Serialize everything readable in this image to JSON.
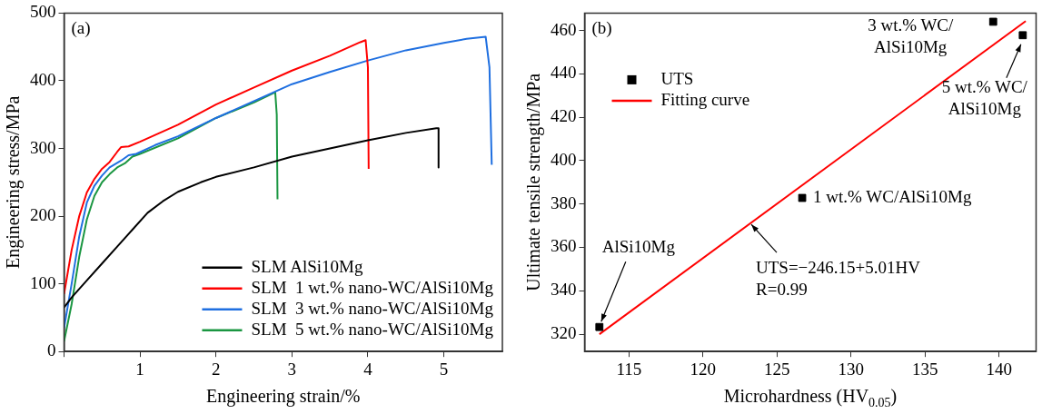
{
  "chart_data": [
    {
      "type": "line",
      "xlabel": "Engineering strain/%",
      "ylabel": "Engineering stress/MPa",
      "xlim": [
        0,
        5.77
      ],
      "ylim": [
        0,
        500
      ],
      "xticks": [
        {
          "value": 0,
          "label": null
        },
        1,
        2,
        3,
        4,
        5
      ],
      "yticks": [
        0,
        100,
        200,
        300,
        400,
        500
      ],
      "grid": false,
      "legend": "bottom right",
      "annotations": [
        "(a)"
      ],
      "series": [
        {
          "name": "SLM AlSi10Mg",
          "color": "#000000",
          "x": [
            0,
            0.1,
            0.3,
            0.5,
            0.7,
            0.9,
            1.1,
            1.3,
            1.5,
            1.8,
            2,
            2.5,
            3,
            3.5,
            4,
            4.5,
            4.9,
            4.93,
            4.93
          ],
          "values": [
            65,
            80,
            105,
            130,
            155,
            180,
            205,
            222,
            236,
            250,
            258,
            272,
            288,
            300,
            312,
            323,
            330,
            330,
            272
          ]
        },
        {
          "name": "SLM  1 wt.% nano-WC/AlSi10Mg",
          "color": "#ff0000",
          "x": [
            0,
            0.1,
            0.2,
            0.3,
            0.4,
            0.5,
            0.6,
            0.7,
            0.75,
            0.85,
            1,
            1.5,
            2,
            2.5,
            3,
            3.5,
            3.9,
            3.97,
            4,
            4.01
          ],
          "values": [
            85,
            150,
            200,
            235,
            255,
            270,
            280,
            295,
            302,
            303,
            310,
            335,
            365,
            390,
            415,
            437,
            457,
            460,
            420,
            270
          ]
        },
        {
          "name": "SLM  3 wt.% nano-WC/AlSi10Mg",
          "color": "#1f6fe0",
          "x": [
            0,
            0.1,
            0.2,
            0.3,
            0.4,
            0.5,
            0.6,
            0.75,
            0.85,
            0.95,
            1.2,
            1.5,
            2,
            2.5,
            2.8,
            3,
            3.5,
            4,
            4.5,
            5,
            5.3,
            5.55,
            5.6,
            5.63
          ],
          "values": [
            35,
            100,
            170,
            220,
            245,
            260,
            272,
            282,
            290,
            292,
            305,
            318,
            345,
            370,
            385,
            395,
            413,
            430,
            445,
            456,
            462,
            465,
            420,
            276
          ]
        },
        {
          "name": "SLM  5 wt.% nano-WC/AlSi10Mg",
          "color": "#1a9641",
          "x": [
            0,
            0.1,
            0.2,
            0.3,
            0.4,
            0.5,
            0.6,
            0.7,
            0.8,
            0.9,
            1,
            1.5,
            2,
            2.5,
            2.78,
            2.8,
            2.81
          ],
          "values": [
            15,
            70,
            140,
            195,
            230,
            250,
            262,
            272,
            278,
            288,
            292,
            315,
            345,
            368,
            383,
            350,
            225
          ]
        }
      ]
    },
    {
      "type": "scatter",
      "xlabel": "Microhardness (HV$_{0.05}$)",
      "ylabel": "Ultimate tensile strength/MPa",
      "xlim": [
        112,
        142.5
      ],
      "ylim": [
        312,
        468
      ],
      "xticks": [
        115,
        120,
        125,
        130,
        135,
        140
      ],
      "yticks": [
        320,
        340,
        360,
        380,
        400,
        420,
        440,
        460
      ],
      "grid": false,
      "legend": "top left",
      "annotations": [
        "(b)",
        {
          "text": "AlSi10Mg",
          "x": 113,
          "y": 323.3
        },
        {
          "text": "1 wt.% WC/AlSi10Mg",
          "x": 126.7,
          "y": 382.8
        },
        {
          "text": "3 wt.% WC/\nAlSi10Mg",
          "x": 139.6,
          "y": 464
        },
        {
          "text": "5 wt.% WC/\nAlSi10Mg",
          "x": 141.6,
          "y": 457.8
        },
        {
          "text": "UTS=−246.15+5.01HV\nR=0.99",
          "x": 123.2,
          "y": 371
        }
      ],
      "series": [
        {
          "name": "UTS",
          "color": "#000000",
          "marker": "square",
          "x": [
            113,
            126.7,
            139.6,
            141.6
          ],
          "values": [
            323.3,
            382.8,
            464,
            457.8
          ]
        },
        {
          "name": "Fitting curve",
          "type": "line",
          "color": "#ff0000",
          "x": [
            113,
            141.8
          ],
          "values": [
            320,
            464.3
          ]
        }
      ]
    }
  ]
}
